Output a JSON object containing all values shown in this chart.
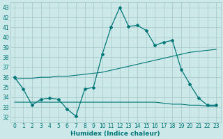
{
  "xlabel": "Humidex (Indice chaleur)",
  "ylabel": "",
  "bg_color": "#cce8e8",
  "grid_color": "#aacccc",
  "line_color": "#007777",
  "xlim": [
    -0.5,
    23.5
  ],
  "ylim": [
    31.5,
    43.5
  ],
  "yticks": [
    32,
    33,
    34,
    35,
    36,
    37,
    38,
    39,
    40,
    41,
    42,
    43
  ],
  "xticks": [
    0,
    1,
    2,
    3,
    4,
    5,
    6,
    7,
    8,
    9,
    10,
    11,
    12,
    13,
    14,
    15,
    16,
    17,
    18,
    19,
    20,
    21,
    22,
    23
  ],
  "series0": [
    36.0,
    34.8,
    33.2,
    33.8,
    33.9,
    33.8,
    32.8,
    32.1,
    34.8,
    35.0,
    38.3,
    41.0,
    43.0,
    41.1,
    41.2,
    40.7,
    39.2,
    39.5,
    39.7,
    36.8,
    35.3,
    33.9,
    33.2,
    33.2
  ],
  "series1": [
    35.8,
    35.9,
    35.9,
    36.0,
    36.0,
    36.1,
    36.1,
    36.2,
    36.3,
    36.4,
    36.5,
    36.7,
    36.9,
    37.1,
    37.3,
    37.5,
    37.7,
    37.9,
    38.1,
    38.3,
    38.5,
    38.6,
    38.7,
    38.8
  ],
  "series2": [
    33.5,
    33.5,
    33.5,
    33.5,
    33.5,
    33.5,
    33.5,
    33.5,
    33.5,
    33.5,
    33.5,
    33.5,
    33.5,
    33.5,
    33.5,
    33.5,
    33.5,
    33.4,
    33.3,
    33.3,
    33.2,
    33.2,
    33.1,
    33.1
  ]
}
